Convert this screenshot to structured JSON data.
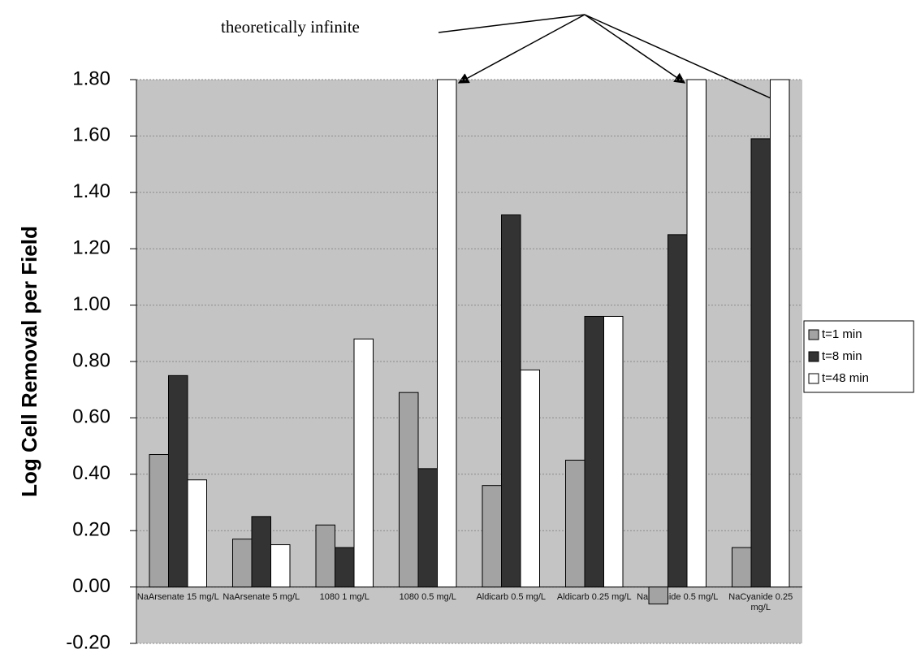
{
  "chart_data": {
    "type": "bar",
    "annotation": "theoretically infinite",
    "y_label": "Log Cell Removal per Field",
    "categories": [
      "NaArsenate 15 mg/L",
      "NaArsenate 5 mg/L",
      "1080 1 mg/L",
      "1080 0.5 mg/L",
      "Aldicarb 0.5 mg/L",
      "Aldicarb 0.25 mg/L",
      "NaCyanide 0.5 mg/L",
      "NaCyanide 0.25 mg/L"
    ],
    "series": [
      {
        "name": "t=1 min",
        "color": "#a3a3a3",
        "values": [
          0.47,
          0.17,
          0.22,
          0.69,
          0.36,
          0.45,
          -0.06,
          0.14
        ]
      },
      {
        "name": "t=8 min",
        "color": "#333333",
        "values": [
          0.75,
          0.25,
          0.14,
          0.42,
          1.32,
          0.96,
          1.25,
          1.59
        ]
      },
      {
        "name": "t=48 min",
        "color": "#ffffff",
        "values": [
          0.38,
          0.15,
          0.88,
          1.8,
          0.77,
          0.96,
          1.8,
          1.8
        ]
      }
    ],
    "ylim": [
      -0.2,
      1.8
    ],
    "yticks": [
      {
        "value": -0.2,
        "label": "-0.20"
      },
      {
        "value": 0,
        "label": "0.00"
      },
      {
        "value": 0.2,
        "label": "0.20"
      },
      {
        "value": 0.4,
        "label": "0.40"
      },
      {
        "value": 0.6,
        "label": "0.60"
      },
      {
        "value": 0.8,
        "label": "0.80"
      },
      {
        "value": 1,
        "label": "1.00"
      },
      {
        "value": 1.2,
        "label": "1.20"
      },
      {
        "value": 1.4,
        "label": "1.40"
      },
      {
        "value": 1.6,
        "label": "1.60"
      },
      {
        "value": 1.8,
        "label": "1.80"
      }
    ],
    "grid": true,
    "legend": "right"
  }
}
